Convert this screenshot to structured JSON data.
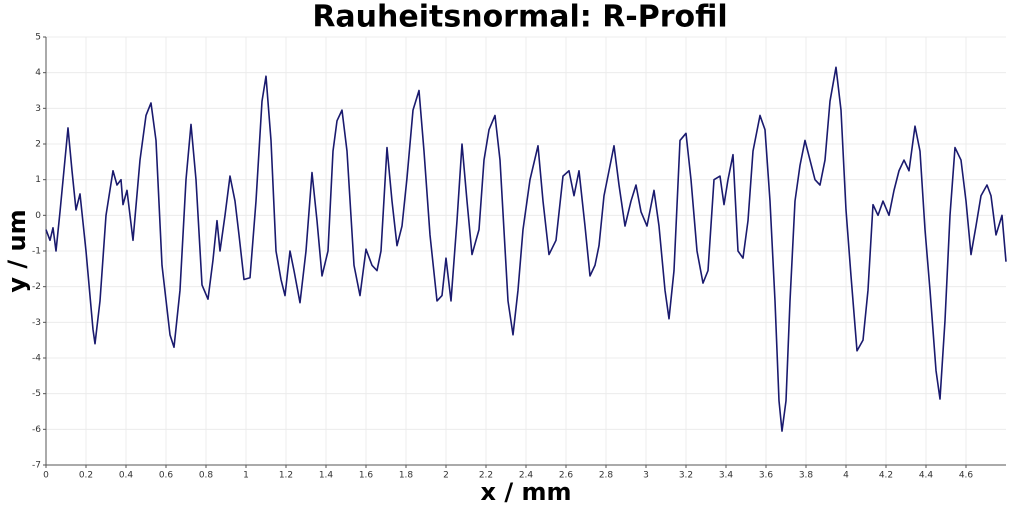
{
  "chart_data": {
    "type": "line",
    "title": "Rauheitsnormal: R-Profil",
    "xlabel": "x / mm",
    "ylabel": "y / um",
    "color": "#1a1a6e",
    "grid": true,
    "xlim": [
      0,
      4.8
    ],
    "ylim": [
      -7,
      5
    ],
    "xticks": [
      0,
      0.2,
      0.4,
      0.6,
      0.8,
      1,
      1.2,
      1.4,
      1.6,
      1.8,
      2,
      2.2,
      2.4,
      2.6,
      2.8,
      3,
      3.2,
      3.4,
      3.6,
      3.8,
      4,
      4.2,
      4.4,
      4.6
    ],
    "yticks": [
      -7,
      -6,
      -5,
      -4,
      -3,
      -2,
      -1,
      0,
      1,
      2,
      3,
      4,
      5
    ],
    "x": [
      0,
      0.02,
      0.035,
      0.05,
      0.07,
      0.11,
      0.13,
      0.15,
      0.17,
      0.2,
      0.235,
      0.245,
      0.27,
      0.3,
      0.335,
      0.355,
      0.375,
      0.385,
      0.405,
      0.435,
      0.47,
      0.5,
      0.525,
      0.55,
      0.58,
      0.62,
      0.64,
      0.67,
      0.7,
      0.725,
      0.75,
      0.78,
      0.81,
      0.835,
      0.855,
      0.87,
      0.895,
      0.92,
      0.945,
      0.965,
      0.99,
      1.02,
      1.05,
      1.08,
      1.1,
      1.125,
      1.15,
      1.175,
      1.195,
      1.22,
      1.24,
      1.27,
      1.3,
      1.33,
      1.355,
      1.38,
      1.41,
      1.435,
      1.455,
      1.48,
      1.505,
      1.54,
      1.57,
      1.6,
      1.63,
      1.655,
      1.675,
      1.705,
      1.73,
      1.755,
      1.78,
      1.805,
      1.835,
      1.865,
      1.89,
      1.92,
      1.955,
      1.98,
      2.0,
      2.025,
      2.055,
      2.08,
      2.105,
      2.13,
      2.165,
      2.19,
      2.215,
      2.245,
      2.27,
      2.31,
      2.335,
      2.36,
      2.385,
      2.42,
      2.46,
      2.485,
      2.515,
      2.55,
      2.585,
      2.615,
      2.64,
      2.665,
      2.695,
      2.72,
      2.745,
      2.765,
      2.79,
      2.815,
      2.84,
      2.865,
      2.895,
      2.925,
      2.95,
      2.975,
      3.005,
      3.04,
      3.065,
      3.095,
      3.115,
      3.14,
      3.17,
      3.2,
      3.225,
      3.255,
      3.285,
      3.31,
      3.34,
      3.37,
      3.39,
      3.41,
      3.435,
      3.46,
      3.485,
      3.51,
      3.535,
      3.57,
      3.595,
      3.62,
      3.645,
      3.665,
      3.68,
      3.7,
      3.72,
      3.745,
      3.77,
      3.795,
      3.82,
      3.845,
      3.87,
      3.895,
      3.92,
      3.95,
      3.975,
      4.0,
      4.025,
      4.055,
      4.085,
      4.11,
      4.135,
      4.16,
      4.185,
      4.215,
      4.24,
      4.265,
      4.29,
      4.315,
      4.345,
      4.37,
      4.395,
      4.42,
      4.45,
      4.47,
      4.495,
      4.52,
      4.545,
      4.575,
      4.6,
      4.625,
      4.65,
      4.675,
      4.705,
      4.725,
      4.75,
      4.78,
      4.8
    ],
    "values": [
      -0.4,
      -0.7,
      -0.35,
      -1.0,
      0.1,
      2.45,
      1.25,
      0.15,
      0.6,
      -1.0,
      -3.2,
      -3.6,
      -2.4,
      0,
      1.25,
      0.85,
      1.0,
      0.3,
      0.7,
      -0.7,
      1.55,
      2.8,
      3.15,
      2.1,
      -1.4,
      -3.35,
      -3.7,
      -2.1,
      1.0,
      2.55,
      1.0,
      -1.95,
      -2.35,
      -1.25,
      -0.15,
      -1.0,
      0,
      1.1,
      0.4,
      -0.55,
      -1.8,
      -1.75,
      0.4,
      3.2,
      3.9,
      2.1,
      -1.0,
      -1.8,
      -2.25,
      -1.0,
      -1.55,
      -2.45,
      -1.0,
      1.2,
      -0.15,
      -1.7,
      -1.0,
      1.8,
      2.65,
      2.95,
      1.8,
      -1.4,
      -2.25,
      -0.95,
      -1.4,
      -1.55,
      -1.0,
      1.9,
      0.4,
      -0.85,
      -0.3,
      1.05,
      2.95,
      3.5,
      1.8,
      -0.55,
      -2.4,
      -2.25,
      -1.2,
      -2.4,
      -0.15,
      2.0,
      0.4,
      -1.1,
      -0.4,
      1.55,
      2.4,
      2.8,
      1.55,
      -2.4,
      -3.35,
      -2.1,
      -0.4,
      1.0,
      1.95,
      0.4,
      -1.1,
      -0.7,
      1.1,
      1.25,
      0.55,
      1.25,
      -0.3,
      -1.7,
      -1.4,
      -0.85,
      0.55,
      1.25,
      1.95,
      0.85,
      -0.3,
      0.4,
      0.85,
      0.1,
      -0.3,
      0.7,
      -0.3,
      -2.1,
      -2.9,
      -1.55,
      2.1,
      2.3,
      1.0,
      -1.0,
      -1.9,
      -1.55,
      1.0,
      1.1,
      0.3,
      1.0,
      1.7,
      -1.0,
      -1.2,
      -0.15,
      1.8,
      2.8,
      2.4,
      0.4,
      -2.4,
      -5.2,
      -6.05,
      -5.2,
      -2.4,
      0.4,
      1.4,
      2.1,
      1.55,
      1.0,
      0.85,
      1.55,
      3.2,
      4.15,
      2.95,
      0.15,
      -1.7,
      -3.8,
      -3.5,
      -2.1,
      0.3,
      0,
      0.4,
      0,
      0.7,
      1.25,
      1.55,
      1.25,
      2.5,
      1.8,
      -0.4,
      -2.1,
      -4.35,
      -5.15,
      -2.95,
      0,
      1.9,
      1.55,
      0.4,
      -1.1,
      -0.3,
      0.55,
      0.85,
      0.55,
      -0.55,
      0,
      -1.3
    ]
  }
}
